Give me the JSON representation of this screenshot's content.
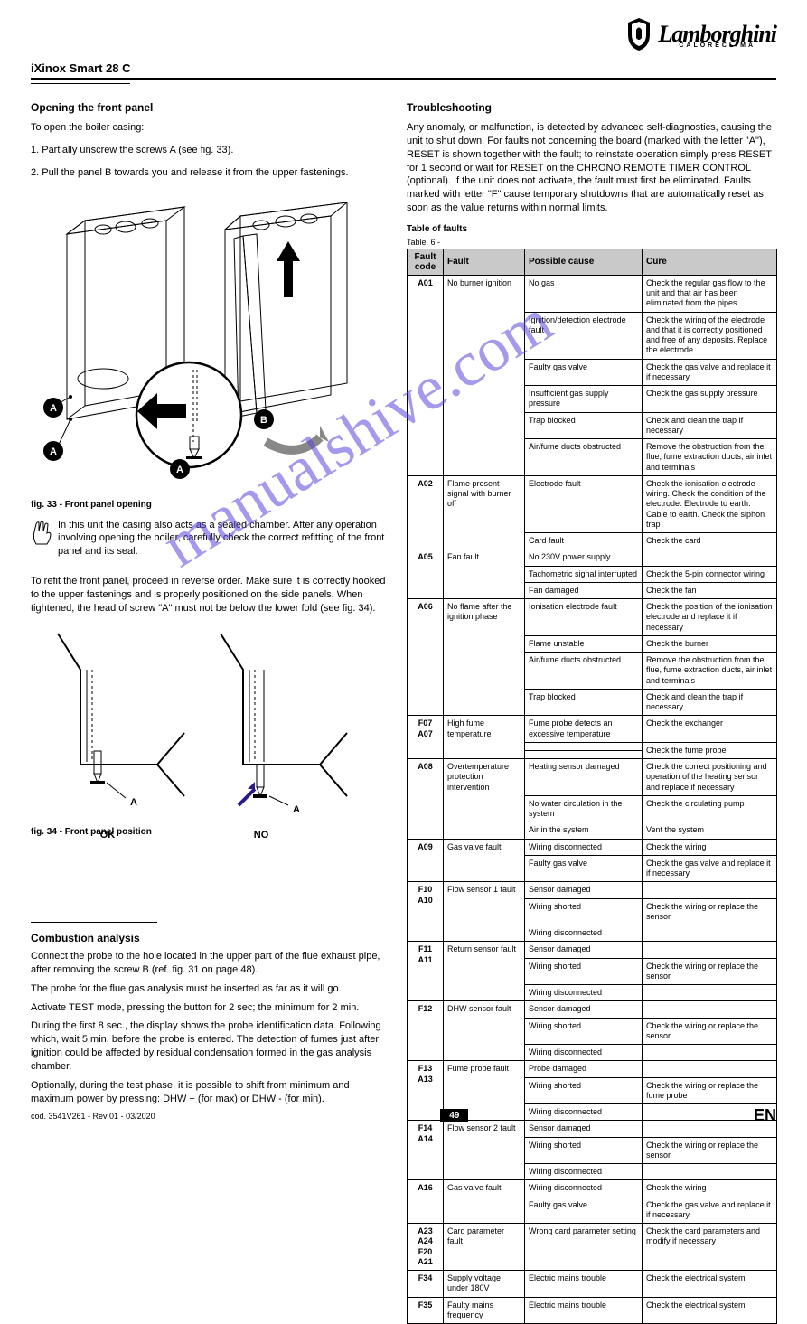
{
  "header": {
    "model": "iXinox Smart 28 C",
    "brand": "Lamborghini",
    "brand_sub": "CALORECLIMA",
    "shield_name": "shield-icon"
  },
  "left": {
    "opening_title": "Opening the front panel",
    "opening_text": "To open the boiler casing:",
    "steps_1": "1. Partially unscrew the screws A (see fig. 33).",
    "steps_2": "2. Pull the panel B towards you and release it from the upper fastenings.",
    "fig1_caption": "fig. 33 - Front panel opening",
    "attention": "In this unit the casing also acts as a sealed chamber. After any operation involving opening the boiler, carefully check the correct refitting of the front panel and its seal.",
    "fig2_intro": "To refit the front panel, proceed in reverse order. Make sure it is correctly hooked to the upper fastenings and is properly positioned on the side panels. When tightened, the head of screw \"A\" must not be below the lower fold (see fig. 34).",
    "side_a": "A",
    "side_b": "B",
    "label_ok": "OK",
    "label_no": "NO",
    "fig2_caption": "fig. 34 - Front panel position"
  },
  "analysis": {
    "title": "Combustion analysis",
    "p1": "Connect the probe to the hole located in the upper part of the flue exhaust pipe, after removing the screw B (ref. fig. 31 on page 48).",
    "p2": "The probe for the flue gas analysis must be inserted as far as it will go.",
    "p3": "Activate TEST mode, pressing the button for 2 sec; the minimum for 2 min.",
    "p4": "During the first 8 sec., the display shows the probe identification data. Following which, wait 5 min. before the probe is entered. The detection of fumes just after ignition could be affected by residual condensation formed in the gas analysis chamber.",
    "p5": "Optionally, during the test phase, it is possible to shift from minimum and maximum power by pressing: DHW + (for max) or DHW - (for min)."
  },
  "right": {
    "title": "Troubleshooting",
    "intro": "Any anomaly, or malfunction, is detected by advanced self-diagnostics, causing the unit to shut down. For faults not concerning the board (marked with the letter \"A\"), RESET is shown together with the fault; to reinstate operation simply press RESET for 1 second or wait for RESET on the CHRONO REMOTE TIMER CONTROL (optional). If the unit does not activate, the fault must first be eliminated. Faults marked with letter \"F\" cause temporary shutdowns that are automatically reset as soon as the value returns within normal limits.",
    "table_title": "Table of faults",
    "table_id": "Table. 6 -",
    "columns": [
      "Fault code",
      "Fault",
      "Possible cause",
      "Cure"
    ],
    "rows": [
      {
        "code": "A01",
        "fault": "No burner ignition",
        "causes": [
          {
            "c": "No gas",
            "s": "Check the regular gas flow to the unit and that air has been eliminated from the pipes"
          },
          {
            "c": "Ignition/detection electrode fault",
            "s": "Check the wiring of the electrode and that it is correctly positioned and free of any deposits. Replace the electrode."
          },
          {
            "c": "Faulty gas valve",
            "s": "Check the gas valve and replace it if necessary"
          },
          {
            "c": "Insufficient gas supply pressure",
            "s": "Check the gas supply pressure"
          },
          {
            "c": "Trap blocked",
            "s": "Check and clean the trap if necessary"
          },
          {
            "c": "Air/fume ducts obstructed",
            "s": "Remove the obstruction from the flue, fume extraction ducts, air inlet and terminals"
          }
        ]
      },
      {
        "code": "A02",
        "fault": "Flame present signal with burner off",
        "causes": [
          {
            "c": "Electrode fault",
            "s": "Check the ionisation electrode wiring. Check the condition of the electrode. Electrode to earth. Cable to earth. Check the siphon trap"
          },
          {
            "c": "Card fault",
            "s": "Check the card"
          }
        ]
      },
      {
        "code": "A05",
        "fault": "Fan fault",
        "causes": [
          {
            "c": "No 230V power supply",
            "s": ""
          },
          {
            "c": "Tachometric signal interrupted",
            "s": "Check the 5-pin connector wiring"
          },
          {
            "c": "Fan damaged",
            "s": "Check the fan"
          }
        ]
      },
      {
        "code": "A06",
        "fault": "No flame after the ignition phase",
        "causes": [
          {
            "c": "Ionisation electrode fault",
            "s": "Check the position of the ionisation electrode and replace it if necessary"
          },
          {
            "c": "Flame unstable",
            "s": "Check the burner"
          },
          {
            "c": "Air/fume ducts obstructed",
            "s": "Remove the obstruction from the flue, fume extraction ducts, air inlet and terminals"
          },
          {
            "c": "Trap blocked",
            "s": "Check and clean the trap if necessary"
          }
        ]
      },
      {
        "code": "F07 A07",
        "fault": "High fume temperature",
        "causes": [
          {
            "c": "Fume probe detects an excessive temperature",
            "s": "Check the exchanger"
          },
          {
            "c": "",
            "s": "Check the fume probe"
          },
          {
            "c": "",
            "s": "Check the fume probe"
          }
        ]
      },
      {
        "code": "A08",
        "fault": "Overtemperature protection intervention",
        "causes": [
          {
            "c": "Heating sensor damaged",
            "s": "Check the correct positioning and operation of the heating sensor and replace if necessary"
          },
          {
            "c": "No water circulation in the system",
            "s": "Check the circulating pump"
          },
          {
            "c": "Air in the system",
            "s": "Vent the system"
          }
        ]
      },
      {
        "code": "A09",
        "fault": "Gas valve fault",
        "causes": [
          {
            "c": "Wiring disconnected",
            "s": "Check the wiring"
          },
          {
            "c": "Faulty gas valve",
            "s": "Check the gas valve and replace it if necessary"
          }
        ]
      },
      {
        "code": "F10 A10",
        "fault": "Flow sensor 1 fault",
        "causes": [
          {
            "c": "Sensor damaged",
            "s": ""
          },
          {
            "c": "Wiring shorted",
            "s": "Check the wiring or replace the sensor"
          },
          {
            "c": "Wiring disconnected",
            "s": ""
          }
        ]
      },
      {
        "code": "F11 A11",
        "fault": "Return sensor fault",
        "causes": [
          {
            "c": "Sensor damaged",
            "s": ""
          },
          {
            "c": "Wiring shorted",
            "s": "Check the wiring or replace the sensor"
          },
          {
            "c": "Wiring disconnected",
            "s": ""
          }
        ]
      },
      {
        "code": "F12",
        "fault": "DHW sensor fault",
        "causes": [
          {
            "c": "Sensor damaged",
            "s": ""
          },
          {
            "c": "Wiring shorted",
            "s": "Check the wiring or replace the sensor"
          },
          {
            "c": "Wiring disconnected",
            "s": ""
          }
        ]
      },
      {
        "code": "F13 A13",
        "fault": "Fume probe fault",
        "causes": [
          {
            "c": "Probe damaged",
            "s": ""
          },
          {
            "c": "Wiring shorted",
            "s": "Check the wiring or replace the fume probe"
          },
          {
            "c": "Wiring disconnected",
            "s": ""
          }
        ]
      },
      {
        "code": "F14 A14",
        "fault": "Flow sensor 2 fault",
        "causes": [
          {
            "c": "Sensor damaged",
            "s": ""
          },
          {
            "c": "Wiring shorted",
            "s": "Check the wiring or replace the sensor"
          },
          {
            "c": "Wiring disconnected",
            "s": ""
          }
        ]
      },
      {
        "code": "A16",
        "fault": "Gas valve fault",
        "causes": [
          {
            "c": "Wiring disconnected",
            "s": "Check the wiring"
          },
          {
            "c": "Faulty gas valve",
            "s": "Check the gas valve and replace it if necessary"
          }
        ]
      },
      {
        "code": "A23 A24 F20 A21",
        "fault": "Card parameter fault",
        "causes": [
          {
            "c": "Wrong card parameter setting",
            "s": "Check the card parameters and modify if necessary"
          }
        ]
      },
      {
        "code": "F34",
        "fault": "Supply voltage under 180V",
        "causes": [
          {
            "c": "Electric mains trouble",
            "s": "Check the electrical system"
          }
        ]
      },
      {
        "code": "F35",
        "fault": "Faulty mains frequency",
        "causes": [
          {
            "c": "Electric mains trouble",
            "s": "Check the electrical system"
          }
        ]
      }
    ]
  },
  "footer": {
    "code": "cod. 3541V261 - Rev 01 - 03/2020",
    "page": "49",
    "lang": "EN"
  },
  "watermark": "manualshive.com"
}
